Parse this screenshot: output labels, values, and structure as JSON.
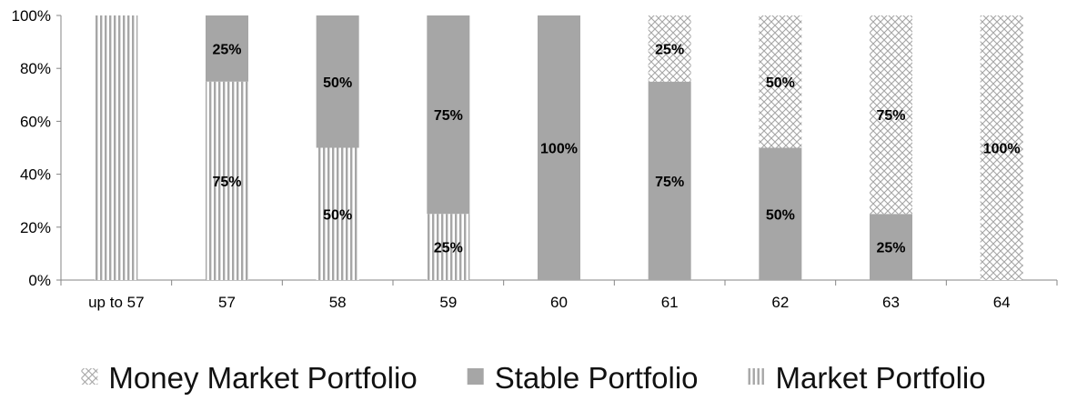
{
  "chart_data": {
    "type": "bar",
    "stacked": true,
    "percent_stacked": true,
    "title": "",
    "xlabel": "",
    "ylabel": "",
    "ylim": [
      0,
      100
    ],
    "yticks": [
      "0%",
      "20%",
      "40%",
      "60%",
      "80%",
      "100%"
    ],
    "categories": [
      "up to 57",
      "57",
      "58",
      "59",
      "60",
      "61",
      "62",
      "63",
      "64"
    ],
    "series": [
      {
        "name": "Market Portfolio",
        "pattern": "vertical-stripes",
        "values": [
          100,
          75,
          50,
          25,
          0,
          0,
          0,
          0,
          0
        ],
        "labels": [
          "",
          "75%",
          "50%",
          "25%",
          "",
          "",
          "",
          "",
          ""
        ]
      },
      {
        "name": "Stable Portfolio",
        "pattern": "solid",
        "values": [
          0,
          25,
          50,
          75,
          100,
          75,
          50,
          25,
          0
        ],
        "labels": [
          "",
          "25%",
          "50%",
          "75%",
          "100%",
          "75%",
          "50%",
          "25%",
          ""
        ]
      },
      {
        "name": "Money Market Portfolio",
        "pattern": "crosshatch",
        "values": [
          0,
          0,
          0,
          0,
          0,
          25,
          50,
          75,
          100
        ],
        "labels": [
          "",
          "",
          "",
          "",
          "",
          "25%",
          "50%",
          "75%",
          "100%"
        ]
      }
    ],
    "legend": {
      "position": "bottom",
      "order": [
        "Money Market Portfolio",
        "Stable Portfolio",
        "Market Portfolio"
      ]
    },
    "grid": false,
    "colors": {
      "stable_fill": "#a6a6a6",
      "stripe_color": "#a6a6a6",
      "hatch_color": "#a6a6a6",
      "axis": "#868686"
    }
  }
}
